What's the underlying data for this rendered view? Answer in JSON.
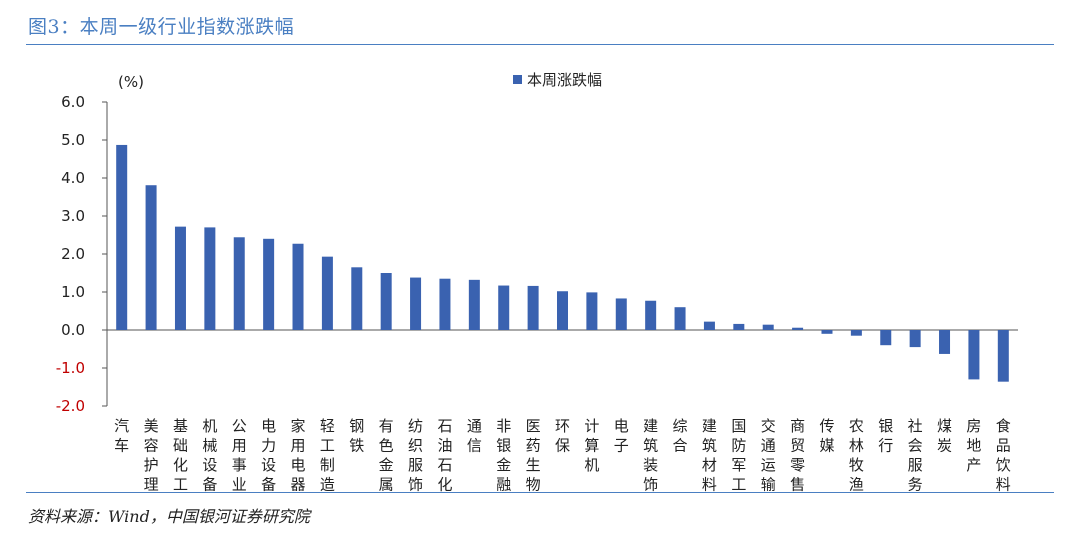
{
  "header": {
    "title": "图3：本周一级行业指数涨跌幅"
  },
  "footer": {
    "source": "资料来源：Wind，中国银河证券研究院"
  },
  "colors": {
    "bar": "#3a62b0",
    "rule": "#4a7fc2",
    "negative_tick": "#c00000",
    "positive_tick": "#222222"
  },
  "chart_data": {
    "type": "bar",
    "unit_label": "(%)",
    "ylim": [
      -2.0,
      6.0
    ],
    "yticks": [
      "6.0",
      "5.0",
      "4.0",
      "3.0",
      "2.0",
      "1.0",
      "0.0",
      "-1.0",
      "-2.0"
    ],
    "ytick_values": [
      6,
      5,
      4,
      3,
      2,
      1,
      0,
      -1,
      -2
    ],
    "legend": "top-center",
    "series": [
      {
        "name": "本周涨跌幅",
        "values": [
          4.87,
          3.81,
          2.72,
          2.7,
          2.44,
          2.4,
          2.27,
          1.93,
          1.65,
          1.5,
          1.38,
          1.35,
          1.32,
          1.17,
          1.16,
          1.02,
          0.99,
          0.83,
          0.77,
          0.6,
          0.22,
          0.16,
          0.14,
          0.06,
          -0.1,
          -0.15,
          -0.4,
          -0.45,
          -0.63,
          -1.3,
          -1.36
        ]
      }
    ],
    "categories": [
      "汽车",
      "美容护理",
      "基础化工",
      "机械设备",
      "公用事业",
      "电力设备",
      "家用电器",
      "轻工制造",
      "钢铁",
      "有色金属",
      "纺织服饰",
      "石油石化",
      "通信",
      "非银金融",
      "医药生物",
      "环保",
      "计算机",
      "电子",
      "建筑装饰",
      "综合",
      "建筑材料",
      "国防军工",
      "交通运输",
      "商贸零售",
      "传媒",
      "农林牧渔",
      "银行",
      "社会服务",
      "煤炭",
      "房地产",
      "食品饮料"
    ]
  }
}
